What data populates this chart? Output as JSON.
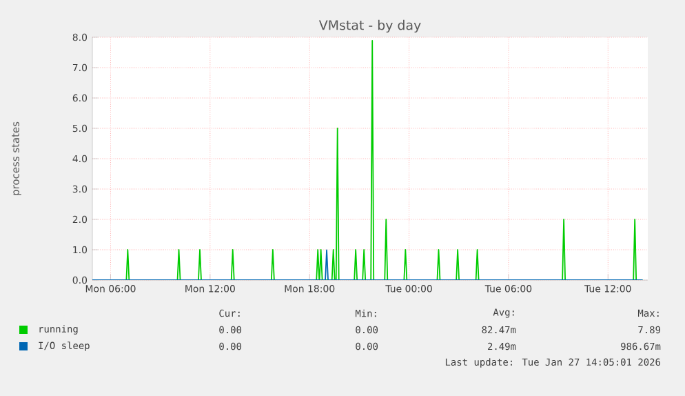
{
  "chart_data": {
    "type": "line",
    "title": "VMstat - by day",
    "ylabel": "process states",
    "xlim": [
      "2026-01-26T04:54",
      "2026-01-27T14:24"
    ],
    "ylim": [
      0,
      8
    ],
    "xticks": [
      {
        "value": "2026-01-26T06:00",
        "label": "Mon 06:00"
      },
      {
        "value": "2026-01-26T12:00",
        "label": "Mon 12:00"
      },
      {
        "value": "2026-01-26T18:00",
        "label": "Mon 18:00"
      },
      {
        "value": "2026-01-27T00:00",
        "label": "Tue 00:00"
      },
      {
        "value": "2026-01-27T06:00",
        "label": "Tue 06:00"
      },
      {
        "value": "2026-01-27T12:00",
        "label": "Tue 12:00"
      }
    ],
    "yticks": [
      {
        "value": 0,
        "label": "0.0"
      },
      {
        "value": 1,
        "label": "1.0"
      },
      {
        "value": 2,
        "label": "2.0"
      },
      {
        "value": 3,
        "label": "3.0"
      },
      {
        "value": 4,
        "label": "4.0"
      },
      {
        "value": 5,
        "label": "5.0"
      },
      {
        "value": 6,
        "label": "6.0"
      },
      {
        "value": 7,
        "label": "7.0"
      },
      {
        "value": 8,
        "label": "8.0"
      }
    ],
    "grid": true,
    "legend": "bottom",
    "marker": "none",
    "line_style": "solid",
    "series": [
      {
        "name": "running",
        "color": "#00cc00",
        "x": [
          "2026-01-26T04:54",
          "2026-01-26T06:57",
          "2026-01-26T07:02",
          "2026-01-26T07:07",
          "2026-01-26T10:02",
          "2026-01-26T10:07",
          "2026-01-26T10:12",
          "2026-01-26T11:18",
          "2026-01-26T11:23",
          "2026-01-26T11:28",
          "2026-01-26T13:17",
          "2026-01-26T13:22",
          "2026-01-26T13:27",
          "2026-01-26T15:42",
          "2026-01-26T15:47",
          "2026-01-26T15:52",
          "2026-01-26T18:25",
          "2026-01-26T18:30",
          "2026-01-26T18:35",
          "2026-01-26T18:36",
          "2026-01-26T18:41",
          "2026-01-26T18:46",
          "2026-01-26T19:21",
          "2026-01-26T19:26",
          "2026-01-26T19:31",
          "2026-01-26T19:36",
          "2026-01-26T19:41",
          "2026-01-26T19:46",
          "2026-01-26T20:42",
          "2026-01-26T20:47",
          "2026-01-26T20:52",
          "2026-01-26T21:12",
          "2026-01-26T21:17",
          "2026-01-26T21:22",
          "2026-01-26T21:42",
          "2026-01-26T21:47",
          "2026-01-26T21:52",
          "2026-01-26T22:32",
          "2026-01-26T22:37",
          "2026-01-26T22:42",
          "2026-01-26T23:42",
          "2026-01-26T23:47",
          "2026-01-26T23:52",
          "2026-01-27T01:42",
          "2026-01-27T01:47",
          "2026-01-27T01:52",
          "2026-01-27T02:51",
          "2026-01-27T02:56",
          "2026-01-27T03:01",
          "2026-01-27T04:02",
          "2026-01-27T04:07",
          "2026-01-27T04:12",
          "2026-01-27T09:15",
          "2026-01-27T09:20",
          "2026-01-27T09:25",
          "2026-01-27T13:32",
          "2026-01-27T13:37",
          "2026-01-27T13:42",
          "2026-01-27T14:05"
        ],
        "values": [
          0,
          0,
          1,
          0,
          0,
          1,
          0,
          0,
          1,
          0,
          0,
          1,
          0,
          0,
          1,
          0,
          0,
          1,
          0,
          0,
          1,
          0,
          0,
          1,
          0,
          0,
          5,
          0,
          0,
          1,
          0,
          0,
          1,
          0,
          0,
          7.89,
          0,
          0,
          2,
          0,
          0,
          1,
          0,
          0,
          1,
          0,
          0,
          1,
          0,
          0,
          1,
          0,
          0,
          2,
          0,
          0,
          2,
          0,
          0
        ]
      },
      {
        "name": "I/O sleep",
        "color": "#0066b3",
        "x": [
          "2026-01-26T04:54",
          "2026-01-26T18:57",
          "2026-01-26T19:02",
          "2026-01-26T19:07",
          "2026-01-27T14:05"
        ],
        "values": [
          0,
          0,
          0.99,
          0,
          0
        ]
      }
    ],
    "annotations": [
      "Cur:",
      "Min:",
      "Avg:",
      "Max:",
      "0.00",
      "0.00",
      "82.47m",
      "7.89",
      "0.00",
      "0.00",
      "2.49m",
      "986.67m",
      "Last update: Tue Jan 27 14:05:01 2026"
    ]
  }
}
